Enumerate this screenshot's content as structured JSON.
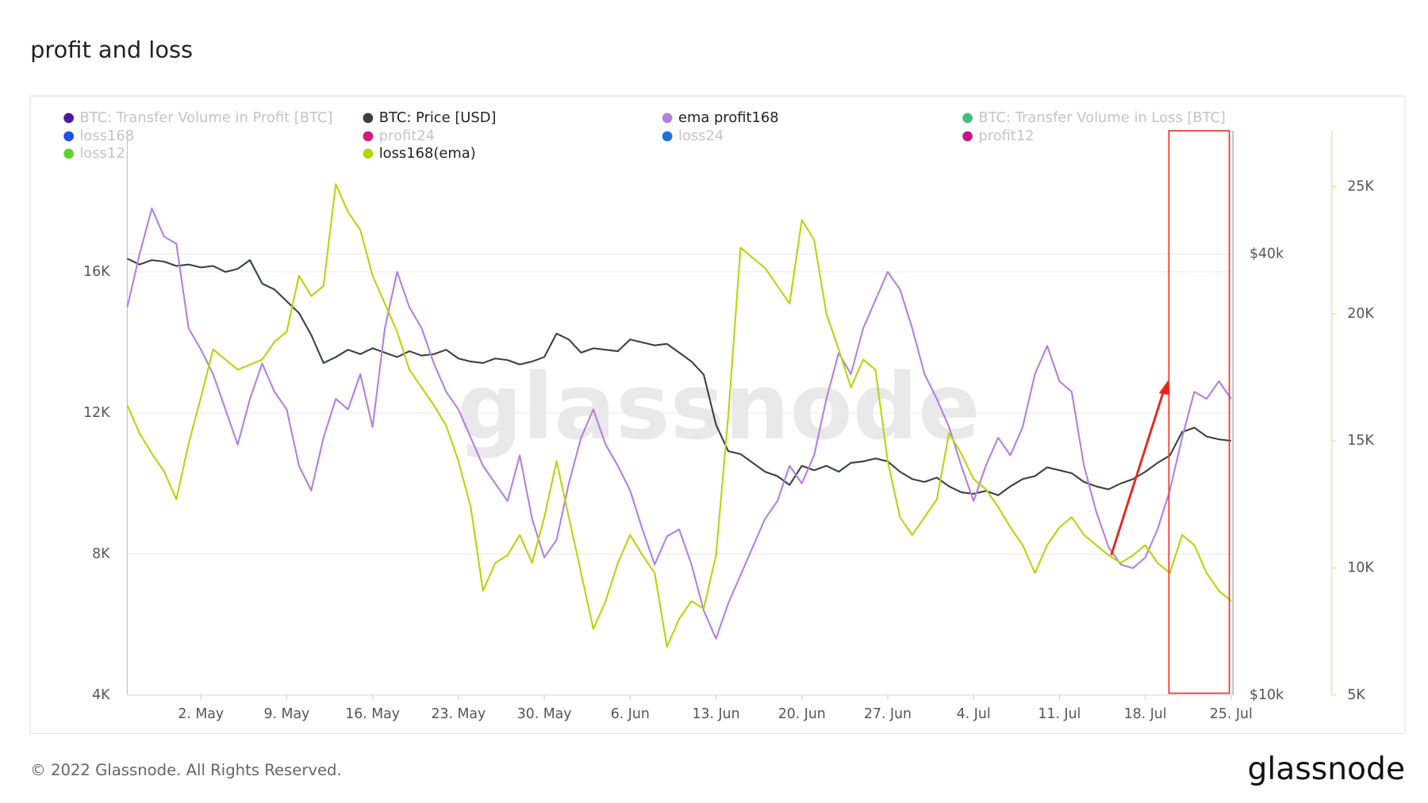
{
  "chart_data": {
    "type": "line",
    "title": "profit and loss",
    "watermark": "glassnode",
    "footer": "© 2022 Glassnode. All Rights Reserved.",
    "logo": "glassnode",
    "x": [
      "26. Apr",
      "27. Apr",
      "28. Apr",
      "29. Apr",
      "30. Apr",
      "1. May",
      "2. May",
      "3. May",
      "4. May",
      "5. May",
      "6. May",
      "7. May",
      "8. May",
      "9. May",
      "10. May",
      "11. May",
      "12. May",
      "13. May",
      "14. May",
      "15. May",
      "16. May",
      "17. May",
      "18. May",
      "19. May",
      "20. May",
      "21. May",
      "22. May",
      "23. May",
      "24. May",
      "25. May",
      "26. May",
      "27. May",
      "28. May",
      "29. May",
      "30. May",
      "31. May",
      "1. Jun",
      "2. Jun",
      "3. Jun",
      "4. Jun",
      "5. Jun",
      "6. Jun",
      "7. Jun",
      "8. Jun",
      "9. Jun",
      "10. Jun",
      "11. Jun",
      "12. Jun",
      "13. Jun",
      "14. Jun",
      "15. Jun",
      "16. Jun",
      "17. Jun",
      "18. Jun",
      "19. Jun",
      "20. Jun",
      "21. Jun",
      "22. Jun",
      "23. Jun",
      "24. Jun",
      "25. Jun",
      "26. Jun",
      "27. Jun",
      "28. Jun",
      "29. Jun",
      "30. Jun",
      "1. Jul",
      "2. Jul",
      "3. Jul",
      "4. Jul",
      "5. Jul",
      "6. Jul",
      "7. Jul",
      "8. Jul",
      "9. Jul",
      "10. Jul",
      "11. Jul",
      "12. Jul",
      "13. Jul",
      "14. Jul",
      "15. Jul",
      "16. Jul",
      "17. Jul",
      "18. Jul",
      "19. Jul",
      "20. Jul",
      "21. Jul",
      "22. Jul",
      "23. Jul",
      "24. Jul",
      "25. Jul"
    ],
    "xticks": [
      "2. May",
      "9. May",
      "16. May",
      "23. May",
      "30. May",
      "6. Jun",
      "13. Jun",
      "20. Jun",
      "27. Jun",
      "4. Jul",
      "11. Jul",
      "18. Jul",
      "25. Jul"
    ],
    "ylim": [
      4000,
      20000
    ],
    "yticks": [
      {
        "value": 4000,
        "label": "4K"
      },
      {
        "value": 8000,
        "label": "8K"
      },
      {
        "value": 12000,
        "label": "12K"
      },
      {
        "value": 16000,
        "label": "16K"
      }
    ],
    "y2lim": [
      10000,
      48400
    ],
    "y2ticks": [
      {
        "value": 10000,
        "label": "$10k"
      },
      {
        "value": 40000,
        "label": "$40k"
      }
    ],
    "y3lim": [
      5000,
      27200
    ],
    "y3ticks": [
      {
        "value": 5000,
        "label": "5K"
      },
      {
        "value": 10000,
        "label": "10K"
      },
      {
        "value": 15000,
        "label": "15K"
      },
      {
        "value": 20000,
        "label": "20K"
      },
      {
        "value": 25000,
        "label": "25K"
      }
    ],
    "grid": true,
    "series": [
      {
        "name": "BTC: Transfer Volume in Profit [BTC]",
        "color": "#4a1aa6",
        "visible": false
      },
      {
        "name": "BTC: Price [USD]",
        "color": "#3a3f3f",
        "visible": true,
        "axis": "y2",
        "values": [
          39700,
          39300,
          39600,
          39500,
          39200,
          39300,
          39100,
          39200,
          38800,
          39000,
          39600,
          38000,
          37600,
          36800,
          36000,
          34500,
          32600,
          33000,
          33500,
          33200,
          33600,
          33300,
          33000,
          33400,
          33100,
          33200,
          33500,
          32900,
          32700,
          32600,
          32900,
          32800,
          32500,
          32700,
          33000,
          34600,
          34200,
          33300,
          33600,
          33500,
          33400,
          34200,
          34000,
          33800,
          33900,
          33300,
          32700,
          31800,
          28400,
          26600,
          26400,
          25800,
          25200,
          24900,
          24300,
          25600,
          25300,
          25600,
          25200,
          25800,
          25900,
          26100,
          25900,
          25200,
          24700,
          24500,
          24800,
          24200,
          23800,
          23700,
          23900,
          23600,
          24200,
          24700,
          24900,
          25500,
          25300,
          25100,
          24500,
          24200,
          24000,
          24400,
          24700,
          25200,
          25800,
          26300,
          27900,
          28200,
          27600,
          27400,
          27300
        ]
      },
      {
        "name": "ema profit168",
        "color": "#b57ee0",
        "visible": true,
        "values": [
          15000,
          16500,
          17800,
          17000,
          16800,
          14400,
          13800,
          13100,
          12100,
          11100,
          12400,
          13400,
          12600,
          12100,
          10500,
          9800,
          11300,
          12400,
          12100,
          13100,
          11600,
          14400,
          16000,
          15000,
          14400,
          13400,
          12600,
          12100,
          11300,
          10500,
          10000,
          9500,
          10800,
          9000,
          7900,
          8400,
          10000,
          11300,
          12100,
          11100,
          10500,
          9800,
          8700,
          7700,
          8500,
          8700,
          7700,
          6400,
          5600,
          6600,
          7400,
          8200,
          9000,
          9500,
          10500,
          10000,
          10800,
          12400,
          13700,
          13100,
          14400,
          15200,
          16000,
          15500,
          14400,
          13100,
          12400,
          11600,
          10500,
          9500,
          10500,
          11300,
          10800,
          11600,
          13100,
          13900,
          12900,
          12600,
          10500,
          9200,
          8200,
          7700,
          7600,
          7900,
          8700,
          9800,
          11300,
          12600,
          12400,
          12900,
          12400
        ]
      },
      {
        "name": "BTC: Transfer Volume in Loss [BTC]",
        "color": "#3ec27a",
        "visible": false
      },
      {
        "name": "loss168",
        "color": "#1f4fe0",
        "visible": false
      },
      {
        "name": "profit24",
        "color": "#d6187a",
        "visible": false
      },
      {
        "name": "loss24",
        "color": "#1a73d9",
        "visible": false
      },
      {
        "name": "profit12",
        "color": "#c4168a",
        "visible": false
      },
      {
        "name": "loss12",
        "color": "#5fd12a",
        "visible": false
      },
      {
        "name": "loss168(ema)",
        "color": "#b8d40a",
        "visible": true,
        "axis": "y3",
        "values": [
          16400,
          15300,
          14500,
          13800,
          12700,
          14900,
          16700,
          18600,
          18200,
          17800,
          18000,
          18200,
          18900,
          19300,
          21500,
          20700,
          21100,
          25100,
          24000,
          23300,
          21500,
          20400,
          19300,
          17800,
          17100,
          16400,
          15600,
          14200,
          12400,
          9100,
          10200,
          10500,
          11300,
          10200,
          12000,
          14200,
          12000,
          9800,
          7600,
          8700,
          10200,
          11300,
          10500,
          9800,
          6900,
          8000,
          8700,
          8400,
          10500,
          16000,
          22600,
          22200,
          21800,
          21100,
          20400,
          23700,
          22900,
          20000,
          18600,
          17100,
          18200,
          17800,
          14200,
          12000,
          11300,
          12000,
          12700,
          15300,
          14500,
          13500,
          13100,
          12400,
          11600,
          10900,
          9800,
          10900,
          11600,
          12000,
          11300,
          10900,
          10500,
          10200,
          10500,
          10900,
          10200,
          9800,
          11300,
          10900,
          9800,
          9100,
          8700
        ]
      }
    ]
  }
}
